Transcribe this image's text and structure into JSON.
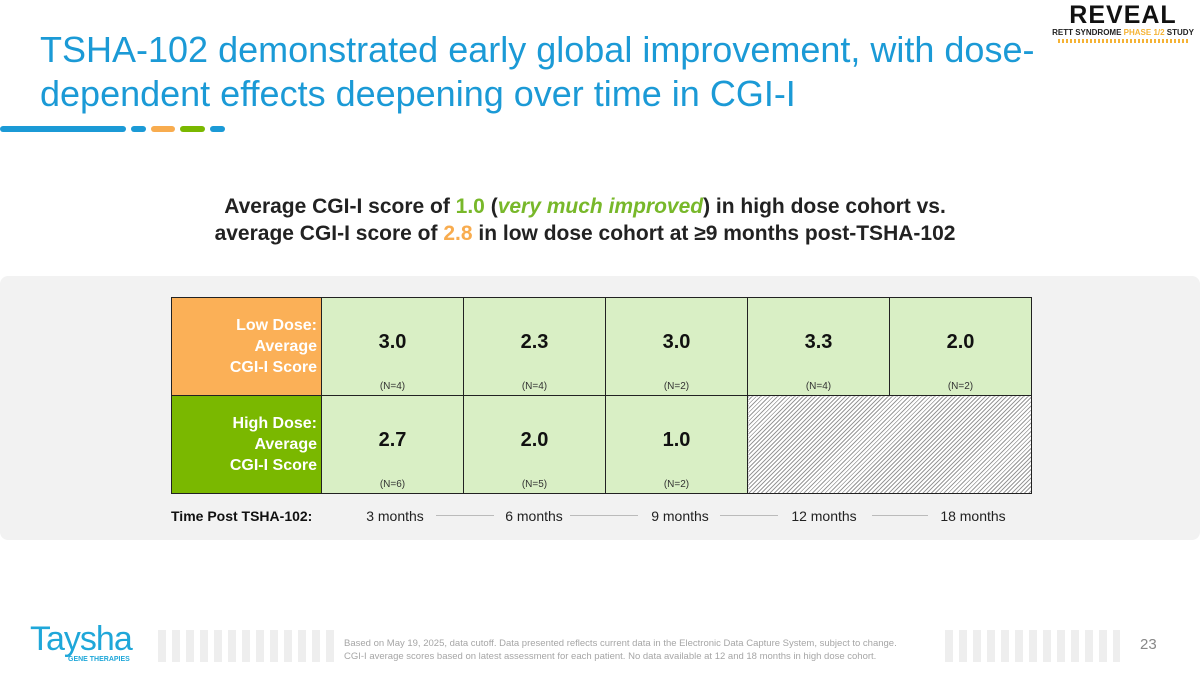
{
  "title": "TSHA-102 demonstrated early global improvement, with dose-dependent effects deepening over time in CGI-I",
  "logo_reveal": {
    "name": "REVEAL",
    "sub_a": "RETT SYNDROME ",
    "sub_b": "PHASE 1/2",
    "sub_c": " STUDY"
  },
  "subtitle": {
    "l1a": "Average CGI-I score of ",
    "l1b": "1.0",
    "l1c": " (",
    "l1d": "very much improved",
    "l1e": ") in high dose cohort vs.",
    "l2a": "average CGI-I score of ",
    "l2b": "2.8",
    "l2c": " in low dose cohort at ≥9 months post-TSHA-102"
  },
  "table": {
    "low": {
      "label": [
        "Low Dose:",
        "Average",
        "CGI-I Score"
      ],
      "values": [
        "3.0",
        "2.3",
        "3.0",
        "3.3",
        "2.0"
      ],
      "n": [
        "(N=4)",
        "(N=4)",
        "(N=2)",
        "(N=4)",
        "(N=2)"
      ]
    },
    "high": {
      "label": [
        "High Dose:",
        "Average",
        "CGI-I Score"
      ],
      "values": [
        "2.7",
        "2.0",
        "1.0"
      ],
      "n": [
        "(N=6)",
        "(N=5)",
        "(N=2)"
      ]
    },
    "time_label": "Time Post TSHA-102:",
    "timepoints": [
      "3 months",
      "6 months",
      "9 months",
      "12 months",
      "18 months"
    ]
  },
  "footer": {
    "logo": "Taysha",
    "logo_sub": "GENE THERAPIES",
    "note1": "Based on May 19, 2025, data cutoff. Data presented reflects current data in the Electronic Data Capture System, subject to change.",
    "note2": "CGI-I average scores based on latest assessment for each patient. No data available at 12 and 18 months in high dose cohort.",
    "page": "23"
  },
  "colors": {
    "title": "#1b9ad6",
    "low": "#fbb057",
    "high": "#7ab800",
    "cell": "#d9efc5"
  }
}
